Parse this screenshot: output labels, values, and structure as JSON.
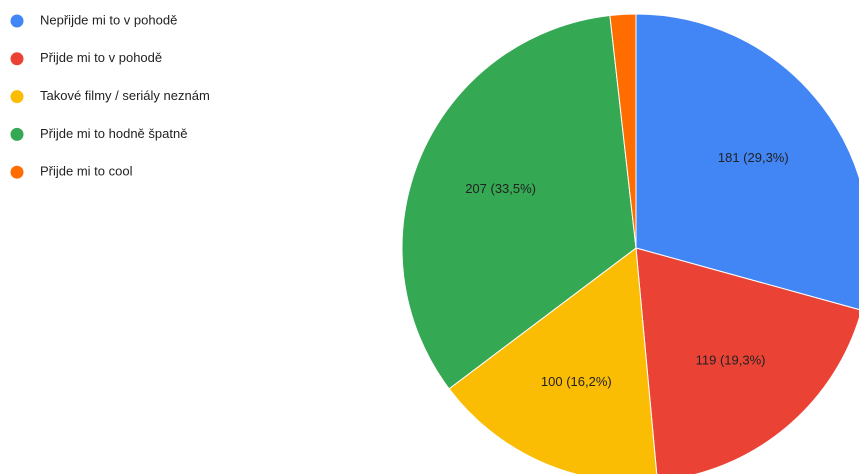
{
  "chart_data": {
    "type": "pie",
    "categories": [
      "Nepřijde mi to v pohodě",
      "Přijde mi to v pohodě",
      "Takové filmy / seriály neznám",
      "Přijde mi to hodně špatně",
      "Přijde mi to cool"
    ],
    "values": [
      181,
      119,
      100,
      207,
      11
    ],
    "value_labels": [
      "181 (29,3%)",
      "119 (19,3%)",
      "100 (16,2%)",
      "207 (33,5%)",
      null
    ],
    "colors": [
      "#4285f4",
      "#ea4335",
      "#fbbc04",
      "#34a853",
      "#ff6d01"
    ],
    "legend": "top-left"
  }
}
